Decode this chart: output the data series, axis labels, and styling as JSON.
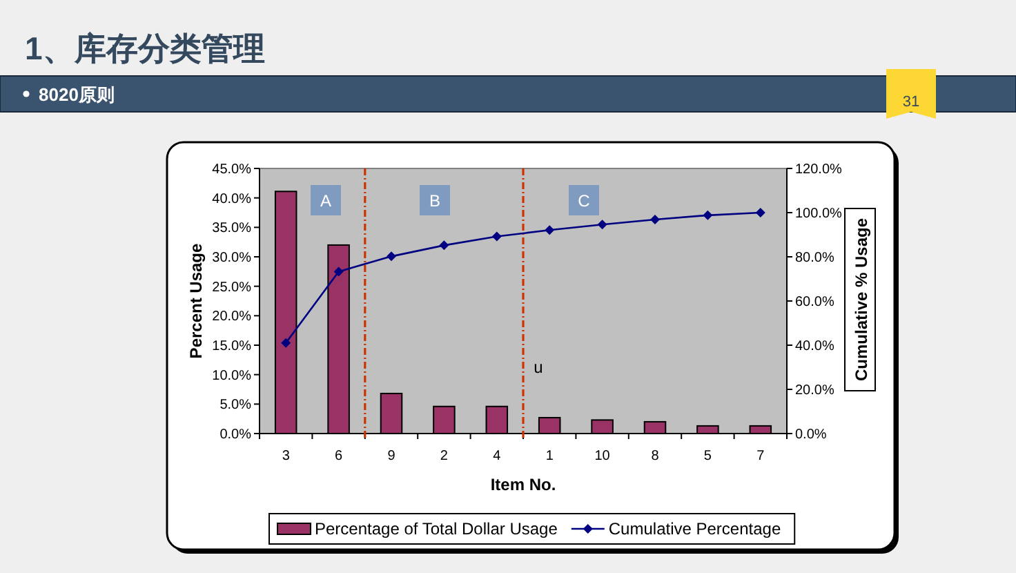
{
  "chart_data": {
    "type": "bar",
    "title": "1、库存分类管理",
    "subtitle": "8020原则",
    "xlabel": "Item No.",
    "ylabel": "Percent Usage",
    "y2label": "Cumulative % Usage",
    "categories": [
      "3",
      "6",
      "9",
      "2",
      "4",
      "1",
      "10",
      "8",
      "5",
      "7"
    ],
    "series": [
      {
        "name": "Percentage of Total Dollar Usage",
        "color": "#993366",
        "values": [
          41.1,
          32.0,
          6.8,
          4.6,
          4.6,
          2.7,
          2.3,
          2.0,
          1.3,
          1.3
        ]
      },
      {
        "name": "Cumulative Percentage",
        "type": "line",
        "axis": "y2",
        "color": "#000080",
        "marker": "diamond",
        "values": [
          41.0,
          73.3,
          80.2,
          85.2,
          89.2,
          92.1,
          94.6,
          96.9,
          98.8,
          100.0
        ]
      }
    ],
    "ylim": [
      0,
      45
    ],
    "yticks": [
      {
        "value": 0,
        "label": "0.0%"
      },
      {
        "value": 5,
        "label": "5.0%"
      },
      {
        "value": 10,
        "label": "10.0%"
      },
      {
        "value": 15,
        "label": "15.0%"
      },
      {
        "value": 20,
        "label": "20.0%"
      },
      {
        "value": 25,
        "label": "25.0%"
      },
      {
        "value": 30,
        "label": "30.0%"
      },
      {
        "value": 35,
        "label": "35.0%"
      },
      {
        "value": 40,
        "label": "40.0%"
      },
      {
        "value": 45,
        "label": "45.0%"
      }
    ],
    "y2lim": [
      0,
      120
    ],
    "y2ticks": [
      {
        "value": 0,
        "label": "0.0%"
      },
      {
        "value": 20,
        "label": "20.0%"
      },
      {
        "value": 40,
        "label": "40.0%"
      },
      {
        "value": 60,
        "label": "60.0%"
      },
      {
        "value": 80,
        "label": "80.0%"
      },
      {
        "value": 100,
        "label": "100.0%"
      },
      {
        "value": 120,
        "label": "120.0%"
      }
    ],
    "annotations": [
      "A",
      "B",
      "C",
      "u",
      "31"
    ],
    "legend": "bottom",
    "grid": false
  }
}
